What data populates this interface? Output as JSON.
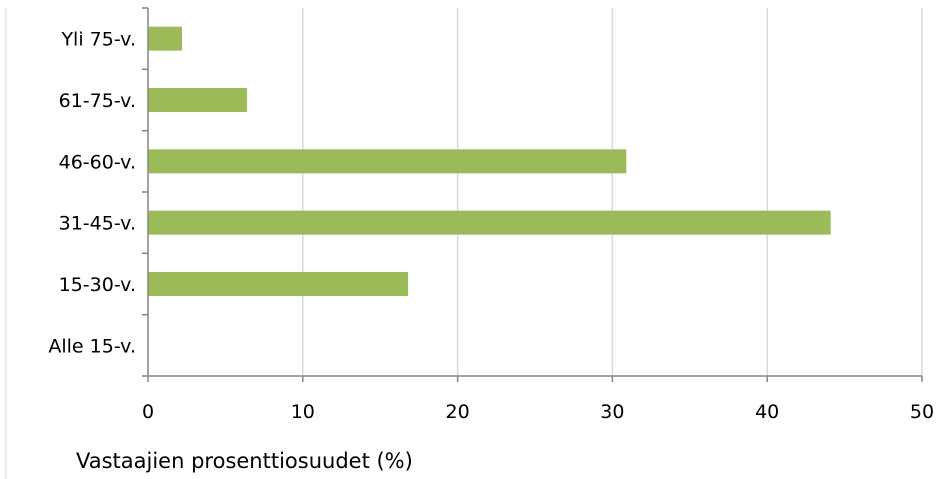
{
  "chart_data": {
    "type": "bar",
    "orientation": "horizontal",
    "categories": [
      "Alle 15-v.",
      "15-30-v.",
      "31-45-v.",
      "46-60-v.",
      "61-75-v.",
      "Yli 75-v."
    ],
    "values": [
      0,
      16.8,
      44.1,
      30.9,
      6.4,
      2.2
    ],
    "xlabel": "Vastaajien prosenttiosuudet (%)",
    "ylabel": "",
    "xlim": [
      0,
      50
    ],
    "xticks": [
      "0",
      "10",
      "20",
      "30",
      "40",
      "50"
    ],
    "grid": "vertical",
    "legend": "none",
    "bar_color": "#9bbb59",
    "grid_color": "#d9d9d9",
    "axis_color": "#868686"
  }
}
